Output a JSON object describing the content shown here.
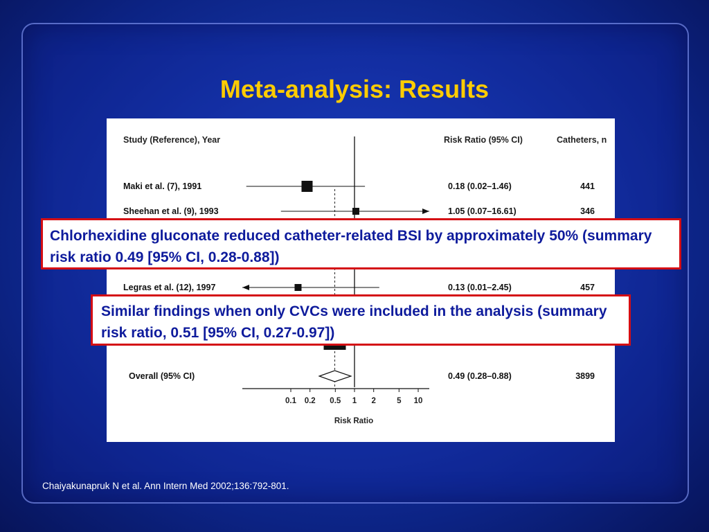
{
  "slide": {
    "title": "Meta-analysis: Results",
    "citation": "Chaiyakunapruk N et al. Ann Intern Med 2002;136:792-801."
  },
  "callouts": [
    "Chlorhexidine gluconate reduced catheter-related BSI by approximately 50% (summary risk ratio 0.49 [95% CI, 0.28-0.88])",
    "Similar findings when only CVCs were included in the analysis (summary risk ratio, 0.51 [95% CI, 0.27-0.97])"
  ],
  "colors": {
    "background": "#1535a8",
    "title": "#ffcc00",
    "callout_border": "#d40e14",
    "callout_text": "#0e1b9c"
  },
  "chart_data": {
    "type": "forest",
    "headers": {
      "study": "Study (Reference), Year",
      "rr": "Risk Ratio (95% CI)",
      "n": "Catheters, n"
    },
    "xlabel": "Risk Ratio",
    "xscale": "log",
    "xticks": [
      "0.1",
      "0.2",
      "0.5",
      "1",
      "2",
      "5",
      "10"
    ],
    "reference_line": 1,
    "summary_line": 0.49,
    "studies": [
      {
        "label": "Maki et al. (7), 1991",
        "rr": 0.18,
        "lo": 0.02,
        "hi": 1.46,
        "rr_text": "0.18 (0.02–1.46)",
        "n": "441"
      },
      {
        "label": "Sheehan et al. (9), 1993",
        "rr": 1.05,
        "lo": 0.07,
        "hi": 16.61,
        "rr_text": "1.05 (0.07–16.61)",
        "n": "346"
      },
      {
        "label": "Legras et al. (12), 1997",
        "rr": 0.13,
        "lo": 0.01,
        "hi": 2.45,
        "rr_text": "0.13 (0.01–2.45)",
        "n": "457"
      }
    ],
    "overall": {
      "label": "Overall (95% CI)",
      "rr": 0.49,
      "lo": 0.28,
      "hi": 0.88,
      "rr_text": "0.49 (0.28–0.88)",
      "n": "3899"
    }
  }
}
